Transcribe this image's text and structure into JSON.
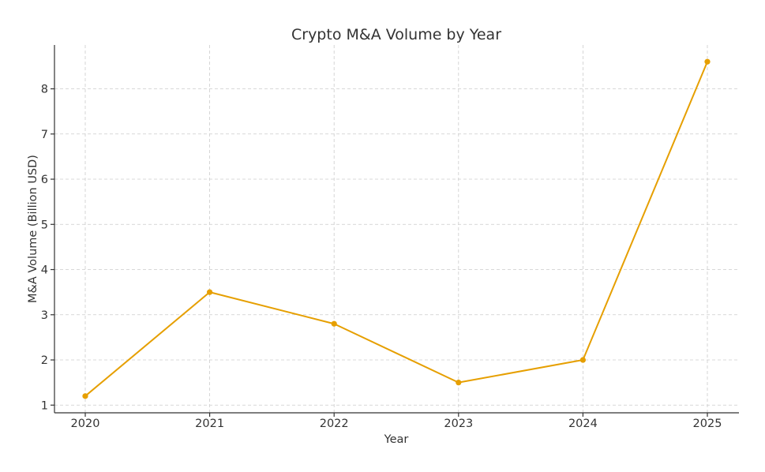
{
  "chart_data": {
    "type": "line",
    "title": "Crypto M&A Volume by Year",
    "xlabel": "Year",
    "ylabel": "M&A Volume (Billion USD)",
    "categories": [
      "2020",
      "2021",
      "2022",
      "2023",
      "2024",
      "2025"
    ],
    "series": [
      {
        "values": [
          1.2,
          3.5,
          2.8,
          1.5,
          2.0,
          8.6
        ]
      }
    ],
    "yticks": [
      1,
      2,
      3,
      4,
      5,
      6,
      7,
      8
    ],
    "ylim": [
      0.83,
      8.97
    ],
    "grid": true,
    "legend": "none",
    "line_color": "#e69f00"
  }
}
